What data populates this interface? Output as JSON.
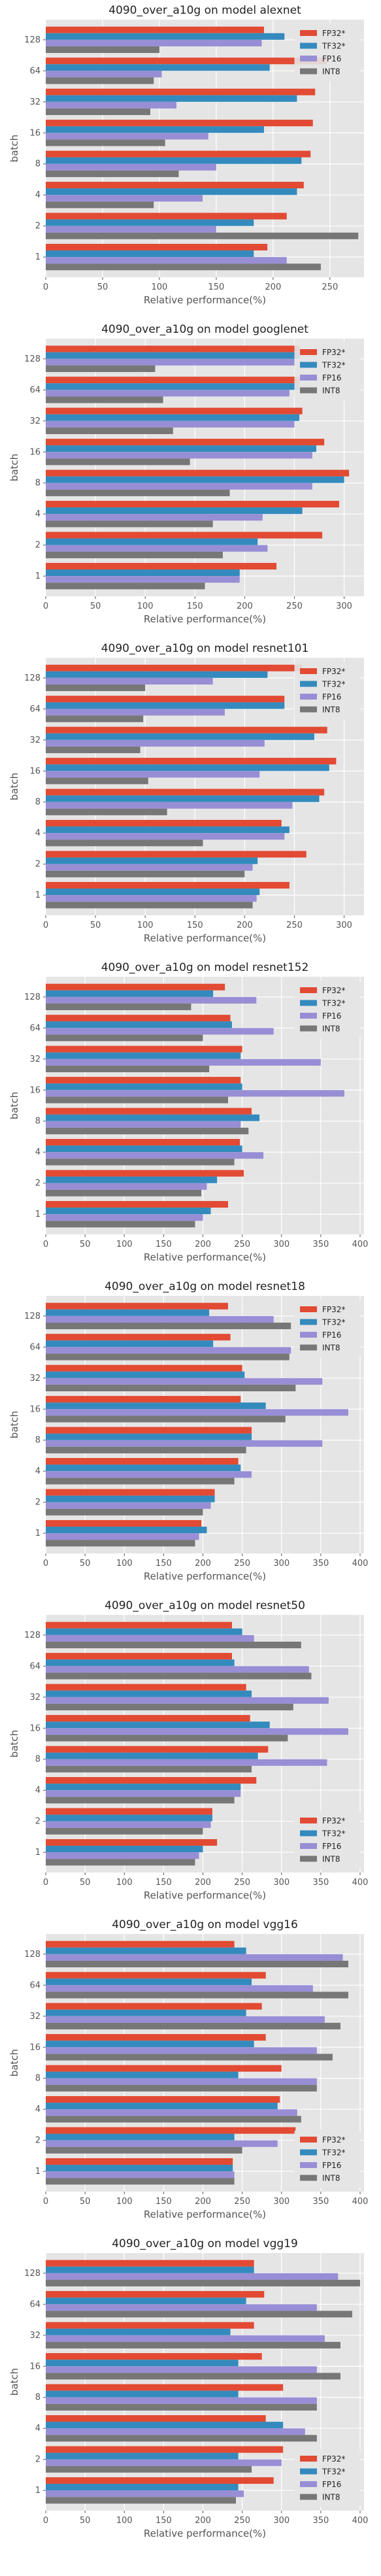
{
  "chart_data": [
    {
      "type": "bar",
      "orientation": "horizontal",
      "title": "4090_over_a10g on model alexnet",
      "xlabel": "Relative performance(%)",
      "ylabel": "batch",
      "categories": [
        "1",
        "2",
        "4",
        "8",
        "16",
        "32",
        "64",
        "128"
      ],
      "xlim": [
        0,
        280
      ],
      "xticks": [
        0,
        50,
        100,
        150,
        200,
        250
      ],
      "legend": "top-right",
      "grid": true,
      "series": [
        {
          "name": "FP32*",
          "color": "#E24A33",
          "values": [
            195,
            212,
            227,
            233,
            235,
            237,
            247,
            192
          ]
        },
        {
          "name": "TF32*",
          "color": "#348ABD",
          "values": [
            183,
            183,
            221,
            225,
            192,
            221,
            197,
            210
          ]
        },
        {
          "name": "FP16",
          "color": "#988ED5",
          "values": [
            212,
            150,
            138,
            150,
            143,
            115,
            102,
            190
          ]
        },
        {
          "name": "INT8",
          "color": "#777777",
          "values": [
            242,
            275,
            95,
            117,
            105,
            92,
            95,
            100
          ]
        }
      ]
    },
    {
      "type": "bar",
      "orientation": "horizontal",
      "title": "4090_over_a10g on model googlenet",
      "xlabel": "Relative performance(%)",
      "ylabel": "batch",
      "categories": [
        "1",
        "2",
        "4",
        "8",
        "16",
        "32",
        "64",
        "128"
      ],
      "xlim": [
        0,
        320
      ],
      "xticks": [
        0,
        50,
        100,
        150,
        200,
        250,
        300
      ],
      "legend": "top-right",
      "grid": true,
      "series": [
        {
          "name": "FP32*",
          "color": "#E24A33",
          "values": [
            232,
            278,
            295,
            305,
            280,
            258,
            255,
            255
          ]
        },
        {
          "name": "TF32*",
          "color": "#348ABD",
          "values": [
            195,
            213,
            258,
            300,
            272,
            255,
            255,
            255
          ]
        },
        {
          "name": "FP16",
          "color": "#988ED5",
          "values": [
            195,
            223,
            218,
            268,
            268,
            250,
            245,
            250
          ]
        },
        {
          "name": "INT8",
          "color": "#777777",
          "values": [
            160,
            178,
            168,
            185,
            145,
            128,
            118,
            110
          ]
        }
      ]
    },
    {
      "type": "bar",
      "orientation": "horizontal",
      "title": "4090_over_a10g on model resnet101",
      "xlabel": "Relative performance(%)",
      "ylabel": "batch",
      "categories": [
        "1",
        "2",
        "4",
        "8",
        "16",
        "32",
        "64",
        "128"
      ],
      "xlim": [
        0,
        320
      ],
      "xticks": [
        0,
        50,
        100,
        150,
        200,
        250,
        300
      ],
      "legend": "top-right",
      "grid": true,
      "series": [
        {
          "name": "FP32*",
          "color": "#E24A33",
          "values": [
            245,
            262,
            237,
            280,
            292,
            283,
            240,
            258
          ]
        },
        {
          "name": "TF32*",
          "color": "#348ABD",
          "values": [
            215,
            213,
            245,
            275,
            285,
            270,
            240,
            223
          ]
        },
        {
          "name": "FP16",
          "color": "#988ED5",
          "values": [
            212,
            208,
            240,
            248,
            215,
            220,
            180,
            168
          ]
        },
        {
          "name": "INT8",
          "color": "#777777",
          "values": [
            208,
            200,
            158,
            122,
            103,
            95,
            98,
            100
          ]
        }
      ]
    },
    {
      "type": "bar",
      "orientation": "horizontal",
      "title": "4090_over_a10g on model resnet152",
      "xlabel": "Relative performance(%)",
      "ylabel": "batch",
      "categories": [
        "1",
        "2",
        "4",
        "8",
        "16",
        "32",
        "64",
        "128"
      ],
      "xlim": [
        0,
        405
      ],
      "xticks": [
        0,
        50,
        100,
        150,
        200,
        250,
        300,
        350,
        400
      ],
      "legend": "top-right",
      "grid": true,
      "series": [
        {
          "name": "FP32*",
          "color": "#E24A33",
          "values": [
            232,
            252,
            247,
            262,
            248,
            250,
            235,
            228
          ]
        },
        {
          "name": "TF32*",
          "color": "#348ABD",
          "values": [
            210,
            218,
            250,
            272,
            250,
            248,
            237,
            213
          ]
        },
        {
          "name": "FP16",
          "color": "#988ED5",
          "values": [
            200,
            205,
            277,
            248,
            380,
            350,
            290,
            268
          ]
        },
        {
          "name": "INT8",
          "color": "#777777",
          "values": [
            190,
            198,
            240,
            258,
            232,
            208,
            200,
            185
          ]
        }
      ]
    },
    {
      "type": "bar",
      "orientation": "horizontal",
      "title": "4090_over_a10g on model resnet18",
      "xlabel": "Relative performance(%)",
      "ylabel": "batch",
      "categories": [
        "1",
        "2",
        "4",
        "8",
        "16",
        "32",
        "64",
        "128"
      ],
      "xlim": [
        0,
        405
      ],
      "xticks": [
        0,
        50,
        100,
        150,
        200,
        250,
        300,
        350,
        400
      ],
      "legend": "top-right",
      "grid": true,
      "series": [
        {
          "name": "FP32*",
          "color": "#E24A33",
          "values": [
            198,
            215,
            245,
            262,
            248,
            250,
            235,
            232
          ]
        },
        {
          "name": "TF32*",
          "color": "#348ABD",
          "values": [
            205,
            215,
            248,
            262,
            280,
            253,
            213,
            208
          ]
        },
        {
          "name": "FP16",
          "color": "#988ED5",
          "values": [
            195,
            210,
            262,
            352,
            385,
            352,
            312,
            290
          ]
        },
        {
          "name": "INT8",
          "color": "#777777",
          "values": [
            190,
            200,
            240,
            255,
            305,
            318,
            310,
            312
          ]
        }
      ]
    },
    {
      "type": "bar",
      "orientation": "horizontal",
      "title": "4090_over_a10g on model resnet50",
      "xlabel": "Relative performance(%)",
      "ylabel": "batch",
      "categories": [
        "1",
        "2",
        "4",
        "8",
        "16",
        "32",
        "64",
        "128"
      ],
      "xlim": [
        0,
        405
      ],
      "xticks": [
        0,
        50,
        100,
        150,
        200,
        250,
        300,
        350,
        400
      ],
      "legend": "bottom-right",
      "grid": true,
      "series": [
        {
          "name": "FP32*",
          "color": "#E24A33",
          "values": [
            218,
            212,
            268,
            283,
            260,
            255,
            237,
            237
          ]
        },
        {
          "name": "TF32*",
          "color": "#348ABD",
          "values": [
            200,
            212,
            248,
            270,
            285,
            262,
            240,
            250
          ]
        },
        {
          "name": "FP16",
          "color": "#988ED5",
          "values": [
            195,
            210,
            248,
            358,
            385,
            360,
            335,
            265
          ]
        },
        {
          "name": "INT8",
          "color": "#777777",
          "values": [
            190,
            200,
            240,
            262,
            308,
            315,
            338,
            325
          ]
        }
      ]
    },
    {
      "type": "bar",
      "orientation": "horizontal",
      "title": "4090_over_a10g on model vgg16",
      "xlabel": "Relative performance(%)",
      "ylabel": "batch",
      "categories": [
        "1",
        "2",
        "4",
        "8",
        "16",
        "32",
        "64",
        "128"
      ],
      "xlim": [
        0,
        405
      ],
      "xticks": [
        0,
        50,
        100,
        150,
        200,
        250,
        300,
        350,
        400
      ],
      "legend": "bottom-right",
      "grid": true,
      "series": [
        {
          "name": "FP32*",
          "color": "#E24A33",
          "values": [
            238,
            318,
            298,
            300,
            280,
            275,
            280,
            240
          ]
        },
        {
          "name": "TF32*",
          "color": "#348ABD",
          "values": [
            238,
            240,
            295,
            245,
            265,
            255,
            262,
            255
          ]
        },
        {
          "name": "FP16",
          "color": "#988ED5",
          "values": [
            240,
            295,
            320,
            345,
            345,
            355,
            340,
            378
          ]
        },
        {
          "name": "INT8",
          "color": "#777777",
          "values": [
            240,
            250,
            325,
            345,
            365,
            375,
            385,
            385
          ]
        }
      ]
    },
    {
      "type": "bar",
      "orientation": "horizontal",
      "title": "4090_over_a10g on model vgg19",
      "xlabel": "Relative performance(%)",
      "ylabel": "batch",
      "categories": [
        "1",
        "2",
        "4",
        "8",
        "16",
        "32",
        "64",
        "128"
      ],
      "xlim": [
        0,
        405
      ],
      "xticks": [
        0,
        50,
        100,
        150,
        200,
        250,
        300,
        350,
        400
      ],
      "legend": "bottom-right",
      "grid": true,
      "series": [
        {
          "name": "FP32*",
          "color": "#E24A33",
          "values": [
            290,
            302,
            280,
            302,
            275,
            265,
            278,
            265
          ]
        },
        {
          "name": "TF32*",
          "color": "#348ABD",
          "values": [
            245,
            245,
            302,
            245,
            245,
            235,
            255,
            265
          ]
        },
        {
          "name": "FP16",
          "color": "#988ED5",
          "values": [
            252,
            300,
            330,
            345,
            345,
            355,
            345,
            372
          ]
        },
        {
          "name": "INT8",
          "color": "#777777",
          "values": [
            242,
            262,
            345,
            345,
            375,
            375,
            390,
            400
          ]
        }
      ]
    }
  ]
}
